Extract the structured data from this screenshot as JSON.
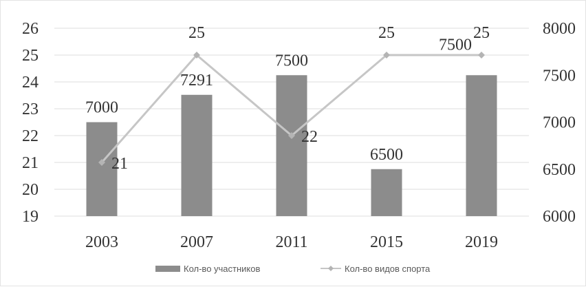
{
  "chart_data": {
    "type": "bar+line",
    "title": "",
    "categories": [
      "2003",
      "2007",
      "2011",
      "2015",
      "2019"
    ],
    "series": [
      {
        "name": "Кол-во участников",
        "type": "bar",
        "axis": "right",
        "values": [
          7000,
          7291,
          7500,
          6500,
          7500
        ],
        "labels": [
          "7000",
          "7291",
          "7500",
          "6500",
          "7500"
        ],
        "color": "#8c8c8c"
      },
      {
        "name": "Кол-во видов спорта",
        "type": "line",
        "axis": "left",
        "values": [
          21,
          25,
          22,
          25,
          25
        ],
        "labels": [
          "21",
          "25",
          "22",
          "25",
          "25"
        ],
        "color": "#c6c6c6"
      }
    ],
    "y_left": {
      "range": [
        19,
        26
      ],
      "ticks": [
        "19",
        "20",
        "21",
        "22",
        "23",
        "24",
        "25",
        "26"
      ]
    },
    "y_right": {
      "range": [
        6000,
        8000
      ],
      "ticks": [
        "6000",
        "6500",
        "7000",
        "7500",
        "8000"
      ]
    },
    "grid": true,
    "legend": "bottom"
  }
}
